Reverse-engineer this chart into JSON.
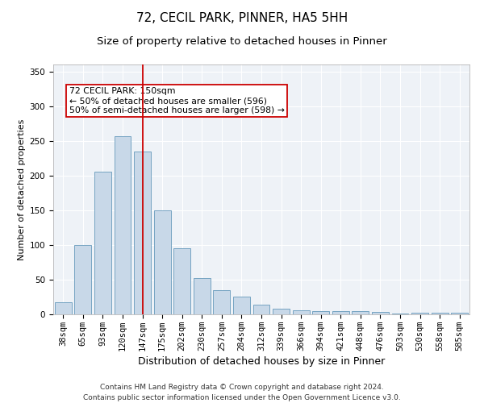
{
  "title1": "72, CECIL PARK, PINNER, HA5 5HH",
  "title2": "Size of property relative to detached houses in Pinner",
  "xlabel": "Distribution of detached houses by size in Pinner",
  "ylabel": "Number of detached properties",
  "categories": [
    "38sqm",
    "65sqm",
    "93sqm",
    "120sqm",
    "147sqm",
    "175sqm",
    "202sqm",
    "230sqm",
    "257sqm",
    "284sqm",
    "312sqm",
    "339sqm",
    "366sqm",
    "394sqm",
    "421sqm",
    "448sqm",
    "476sqm",
    "503sqm",
    "530sqm",
    "558sqm",
    "585sqm"
  ],
  "values": [
    18,
    100,
    205,
    257,
    235,
    150,
    95,
    52,
    35,
    26,
    14,
    8,
    6,
    5,
    5,
    5,
    3,
    1,
    2,
    2,
    2
  ],
  "bar_color": "#c8d8e8",
  "bar_edge_color": "#6699bb",
  "bar_edge_width": 0.6,
  "red_line_x": 4,
  "red_line_color": "#cc0000",
  "annotation_text": "72 CECIL PARK: 150sqm\n← 50% of detached houses are smaller (596)\n50% of semi-detached houses are larger (598) →",
  "annotation_box_color": "#ffffff",
  "annotation_box_edge_color": "#cc0000",
  "ylim": [
    0,
    360
  ],
  "yticks": [
    0,
    50,
    100,
    150,
    200,
    250,
    300,
    350
  ],
  "background_color": "#eef2f7",
  "grid_color": "#ffffff",
  "footer_line1": "Contains HM Land Registry data © Crown copyright and database right 2024.",
  "footer_line2": "Contains public sector information licensed under the Open Government Licence v3.0.",
  "title1_fontsize": 11,
  "title2_fontsize": 9.5,
  "xlabel_fontsize": 9,
  "ylabel_fontsize": 8,
  "tick_fontsize": 7.5,
  "annotation_fontsize": 7.8,
  "footer_fontsize": 6.5
}
